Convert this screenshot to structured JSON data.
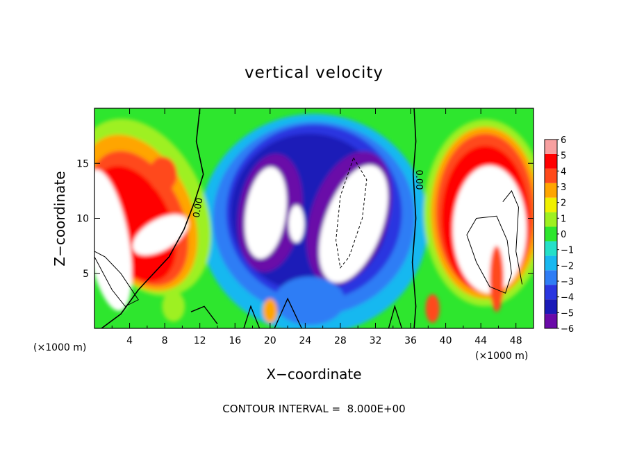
{
  "chart_data": {
    "type": "heatmap",
    "title": "vertical velocity",
    "xlabel": "X−coordinate",
    "ylabel": "Z−coordinate",
    "x_unit": "(×1000 m)",
    "y_unit": "(×1000 m)",
    "xlim": [
      0,
      50
    ],
    "ylim": [
      0,
      20
    ],
    "x_ticks": [
      4,
      8,
      12,
      16,
      20,
      24,
      28,
      32,
      36,
      40,
      44,
      48
    ],
    "x_tick_labels": [
      "4",
      "8",
      "12",
      "16",
      "20",
      "24",
      "28",
      "32",
      "36",
      "40",
      "44",
      "48"
    ],
    "y_ticks": [
      5,
      10,
      15
    ],
    "y_tick_labels": [
      "5",
      "10",
      "15"
    ],
    "colorbar": {
      "min": -6,
      "max": 6,
      "levels": [
        -6,
        -5,
        -4,
        -3,
        -2,
        -1,
        0,
        1,
        2,
        3,
        4,
        5,
        6
      ],
      "labels": [
        "−6",
        "−5",
        "−4",
        "−3",
        "−2",
        "−1",
        "0",
        "1",
        "2",
        "3",
        "4",
        "5",
        "6"
      ],
      "colors": [
        "#6a0aa8",
        "#1a1ab8",
        "#2a36e0",
        "#2f7df5",
        "#18b8f0",
        "#24e0c8",
        "#2ee62e",
        "#9ef020",
        "#f0f000",
        "#ffa500",
        "#ff4a1a",
        "#ff0000",
        "#f7a0a0"
      ],
      "out_of_range_color": "#ffffff"
    },
    "contour_interval": 8.0,
    "contour_labels": [
      "0.00",
      "0.00"
    ],
    "field_features": [
      {
        "kind": "updraft",
        "x_center": 5,
        "z_center": 10,
        "peak": 6
      },
      {
        "kind": "downdraft",
        "x_center": 22,
        "z_center": 11,
        "peak": -6
      },
      {
        "kind": "downdraft",
        "x_center": 29,
        "z_center": 10,
        "peak": -6
      },
      {
        "kind": "updraft",
        "x_center": 44,
        "z_center": 10,
        "peak": 6
      }
    ]
  },
  "footer": {
    "contour_text": "CONTOUR INTERVAL =  8.000E+00"
  }
}
